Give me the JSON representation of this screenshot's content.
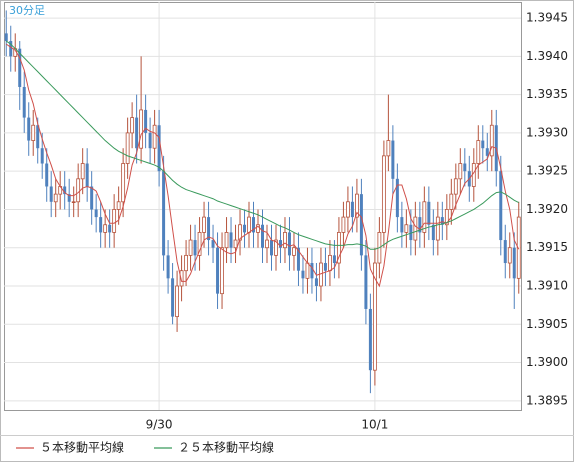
{
  "chart_data": {
    "type": "candlestick",
    "title": "30分足",
    "up_color": "#b5533c",
    "down_color": "#4f81bd",
    "grid": true,
    "ylim": [
      1.38938,
      1.39471
    ],
    "yticks": [
      1.3895,
      {
        "value": 1.39,
        "label": "1.3900"
      },
      1.3905,
      {
        "value": 1.391,
        "label": "1.3910"
      },
      1.3915,
      {
        "value": 1.392,
        "label": "1.3920"
      },
      1.3925,
      {
        "value": 1.393,
        "label": "1.3930"
      },
      1.3935,
      {
        "value": 1.394,
        "label": "1.3940"
      },
      1.3945
    ],
    "xticks": [
      {
        "value": 34,
        "label": "9/30"
      },
      {
        "value": 82,
        "label": "10/1"
      }
    ],
    "open": [
      1.3943,
      1.3942,
      1.394,
      1.3941,
      1.3936,
      1.3932,
      1.3929,
      1.3931,
      1.3928,
      1.3926,
      1.3923,
      1.3921,
      1.3922,
      1.3923,
      1.3922,
      1.3921,
      1.3921,
      1.3924,
      1.3926,
      1.3923,
      1.392,
      1.3919,
      1.3917,
      1.3918,
      1.3917,
      1.392,
      1.3921,
      1.3926,
      1.393,
      1.3932,
      1.3928,
      1.3933,
      1.393,
      1.3928,
      1.3931,
      1.3925,
      1.3914,
      1.3911,
      1.3906,
      1.391,
      1.3912,
      1.3914,
      1.3916,
      1.3914,
      1.3917,
      1.3919,
      1.3916,
      1.3915,
      1.3909,
      1.3915,
      1.3917,
      1.3915,
      1.3916,
      1.3918,
      1.3917,
      1.3919,
      1.3917,
      1.3918,
      1.3915,
      1.3916,
      1.3914,
      1.3916,
      1.3915,
      1.3917,
      1.3914,
      1.3915,
      1.3912,
      1.3911,
      1.3913,
      1.3911,
      1.391,
      1.3913,
      1.3912,
      1.3914,
      1.3913,
      1.3917,
      1.3919,
      1.3921,
      1.3919,
      1.3922,
      1.3914,
      1.3907,
      1.3899,
      1.3913,
      1.3917,
      1.3927,
      1.3929,
      1.3924,
      1.3919,
      1.3917,
      1.3918,
      1.3916,
      1.3919,
      1.3917,
      1.3921,
      1.3918,
      1.3916,
      1.3919,
      1.3918,
      1.392,
      1.3922,
      1.3924,
      1.3926,
      1.3925,
      1.3923,
      1.3926,
      1.3929,
      1.3928,
      1.3927,
      1.3931,
      1.3925,
      1.3916,
      1.3913,
      1.3915,
      1.3911
    ],
    "high": [
      1.3946,
      1.3944,
      1.3943,
      1.3942,
      1.3938,
      1.3934,
      1.3933,
      1.3932,
      1.393,
      1.3928,
      1.3925,
      1.3924,
      1.3925,
      1.3925,
      1.3924,
      1.3923,
      1.3926,
      1.3928,
      1.3928,
      1.3925,
      1.3922,
      1.3921,
      1.392,
      1.392,
      1.3922,
      1.3923,
      1.3928,
      1.3932,
      1.3934,
      1.3935,
      1.394,
      1.3935,
      1.3932,
      1.3933,
      1.3933,
      1.3927,
      1.3916,
      1.3913,
      1.3912,
      1.3914,
      1.3916,
      1.3918,
      1.3918,
      1.3919,
      1.3921,
      1.3921,
      1.3918,
      1.3917,
      1.3917,
      1.3919,
      1.3919,
      1.3918,
      1.392,
      1.392,
      1.3921,
      1.3921,
      1.392,
      1.392,
      1.3918,
      1.3918,
      1.3918,
      1.3918,
      1.3919,
      1.3919,
      1.3917,
      1.3917,
      1.3914,
      1.3915,
      1.3915,
      1.3913,
      1.3915,
      1.3915,
      1.3916,
      1.3916,
      1.3919,
      1.3921,
      1.3923,
      1.3923,
      1.3924,
      1.3924,
      1.3916,
      1.3909,
      1.3915,
      1.3919,
      1.3929,
      1.3935,
      1.3931,
      1.3926,
      1.3921,
      1.392,
      1.392,
      1.3921,
      1.3921,
      1.3923,
      1.3923,
      1.392,
      1.3921,
      1.3921,
      1.3922,
      1.3924,
      1.3926,
      1.3928,
      1.3928,
      1.3927,
      1.3928,
      1.3931,
      1.3931,
      1.393,
      1.3933,
      1.3933,
      1.3927,
      1.3918,
      1.3917,
      1.3917,
      1.3921
    ],
    "low": [
      1.394,
      1.3938,
      1.3938,
      1.3933,
      1.393,
      1.3927,
      1.3927,
      1.3926,
      1.3924,
      1.3921,
      1.3919,
      1.3919,
      1.392,
      1.392,
      1.3919,
      1.3919,
      1.3919,
      1.3922,
      1.3921,
      1.3918,
      1.3917,
      1.3915,
      1.3915,
      1.3915,
      1.3915,
      1.3918,
      1.3919,
      1.3924,
      1.3928,
      1.3926,
      1.3926,
      1.3928,
      1.3926,
      1.3926,
      1.3923,
      1.3912,
      1.3909,
      1.3905,
      1.3904,
      1.3908,
      1.391,
      1.3912,
      1.3912,
      1.3912,
      1.3915,
      1.3914,
      1.3913,
      1.3907,
      1.3907,
      1.3913,
      1.3913,
      1.3913,
      1.3914,
      1.3915,
      1.3915,
      1.3915,
      1.3915,
      1.3913,
      1.3913,
      1.3912,
      1.3912,
      1.3913,
      1.3913,
      1.3912,
      1.3912,
      1.391,
      1.3909,
      1.3909,
      1.3909,
      1.3908,
      1.3908,
      1.391,
      1.391,
      1.3911,
      1.3911,
      1.3915,
      1.3917,
      1.3917,
      1.3917,
      1.3912,
      1.3905,
      1.3896,
      1.3897,
      1.3911,
      1.3915,
      1.3925,
      1.3922,
      1.3917,
      1.3915,
      1.3915,
      1.3914,
      1.3914,
      1.3915,
      1.3915,
      1.3916,
      1.3914,
      1.3914,
      1.3916,
      1.3916,
      1.3918,
      1.392,
      1.3922,
      1.3923,
      1.3921,
      1.3921,
      1.3924,
      1.3926,
      1.3925,
      1.3925,
      1.3923,
      1.3914,
      1.3911,
      1.3911,
      1.3907,
      1.3909
    ],
    "close": [
      1.3942,
      1.394,
      1.3941,
      1.3936,
      1.3932,
      1.3929,
      1.3931,
      1.3928,
      1.3926,
      1.3923,
      1.3921,
      1.3922,
      1.3923,
      1.3922,
      1.3921,
      1.3921,
      1.3924,
      1.3926,
      1.3923,
      1.392,
      1.3919,
      1.3917,
      1.3918,
      1.3917,
      1.392,
      1.3921,
      1.3926,
      1.393,
      1.3932,
      1.3928,
      1.3933,
      1.393,
      1.3928,
      1.3931,
      1.3925,
      1.3914,
      1.3911,
      1.3906,
      1.391,
      1.3912,
      1.3914,
      1.3916,
      1.3914,
      1.3917,
      1.3919,
      1.3916,
      1.3915,
      1.3909,
      1.3915,
      1.3917,
      1.3915,
      1.3916,
      1.3918,
      1.3917,
      1.3919,
      1.3917,
      1.3918,
      1.3915,
      1.3916,
      1.3914,
      1.3916,
      1.3915,
      1.3917,
      1.3914,
      1.3915,
      1.3912,
      1.3911,
      1.3913,
      1.3911,
      1.391,
      1.3913,
      1.3912,
      1.3914,
      1.3913,
      1.3917,
      1.3919,
      1.3921,
      1.3919,
      1.3922,
      1.3914,
      1.3907,
      1.3899,
      1.3913,
      1.3917,
      1.3927,
      1.3929,
      1.3924,
      1.3919,
      1.3917,
      1.3918,
      1.3916,
      1.3919,
      1.3917,
      1.3921,
      1.3918,
      1.3916,
      1.3919,
      1.3918,
      1.392,
      1.3922,
      1.3924,
      1.3926,
      1.3925,
      1.3923,
      1.3926,
      1.3929,
      1.3928,
      1.3927,
      1.3931,
      1.3925,
      1.3916,
      1.3913,
      1.3915,
      1.3911,
      1.3919
    ],
    "series": [
      {
        "name": "５本移動平均線",
        "color": "#d0504a",
        "values": [
          1.39416,
          1.39412,
          1.39408,
          1.39398,
          1.39382,
          1.39356,
          1.39338,
          1.39312,
          1.39292,
          1.39274,
          1.39258,
          1.3924,
          1.3923,
          1.39222,
          1.39218,
          1.39218,
          1.39222,
          1.39228,
          1.3923,
          1.39228,
          1.39224,
          1.3921,
          1.39194,
          1.39182,
          1.39182,
          1.39186,
          1.39204,
          1.39228,
          1.39258,
          1.39274,
          1.39298,
          1.39306,
          1.39302,
          1.393,
          1.39294,
          1.39256,
          1.39218,
          1.39174,
          1.39132,
          1.39106,
          1.39106,
          1.39116,
          1.39132,
          1.39146,
          1.3916,
          1.39164,
          1.39162,
          1.39152,
          1.39148,
          1.39144,
          1.39142,
          1.39144,
          1.39162,
          1.39166,
          1.3917,
          1.39174,
          1.39178,
          1.39172,
          1.3917,
          1.3916,
          1.39158,
          1.39152,
          1.39156,
          1.39152,
          1.39154,
          1.39146,
          1.39138,
          1.3913,
          1.39124,
          1.39114,
          1.39116,
          1.39118,
          1.3912,
          1.39124,
          1.39138,
          1.3915,
          1.39168,
          1.39178,
          1.39196,
          1.3919,
          1.39166,
          1.39122,
          1.3911,
          1.391,
          1.39126,
          1.3917,
          1.3922,
          1.39232,
          1.39232,
          1.39214,
          1.39188,
          1.39178,
          1.39174,
          1.39182,
          1.39182,
          1.39182,
          1.39182,
          1.39184,
          1.39182,
          1.3919,
          1.39206,
          1.3922,
          1.39234,
          1.3924,
          1.39248,
          1.39258,
          1.39262,
          1.39266,
          1.39282,
          1.3928,
          1.39254,
          1.39224,
          1.392,
          1.3916,
          1.39148
        ]
      },
      {
        "name": "２５本移動平均線",
        "color": "#3a9a5c",
        "values": [
          1.3942,
          1.39416,
          1.3941,
          1.39404,
          1.39398,
          1.39392,
          1.39386,
          1.3938,
          1.39374,
          1.39368,
          1.39362,
          1.39356,
          1.3935,
          1.39344,
          1.39338,
          1.39332,
          1.39326,
          1.3932,
          1.39314,
          1.39308,
          1.39302,
          1.39296,
          1.3929,
          1.39285,
          1.3928,
          1.39276,
          1.39273,
          1.3927,
          1.39268,
          1.39266,
          1.39264,
          1.39262,
          1.3926,
          1.39258,
          1.39255,
          1.3925,
          1.39244,
          1.39238,
          1.39233,
          1.39229,
          1.39226,
          1.39224,
          1.39222,
          1.3922,
          1.39218,
          1.39216,
          1.39214,
          1.39211,
          1.39209,
          1.39207,
          1.39205,
          1.39203,
          1.39201,
          1.39199,
          1.39197,
          1.39195,
          1.39193,
          1.3919,
          1.39187,
          1.39184,
          1.39181,
          1.39178,
          1.39176,
          1.39173,
          1.3917,
          1.39167,
          1.39165,
          1.39163,
          1.39161,
          1.39159,
          1.39157,
          1.39155,
          1.39154,
          1.39153,
          1.39153,
          1.39153,
          1.39154,
          1.39154,
          1.39155,
          1.39154,
          1.39152,
          1.39148,
          1.39148,
          1.3915,
          1.39154,
          1.39158,
          1.39161,
          1.39163,
          1.39165,
          1.39167,
          1.39169,
          1.39171,
          1.39173,
          1.39175,
          1.39177,
          1.39178,
          1.3918,
          1.39181,
          1.39183,
          1.39185,
          1.39188,
          1.39191,
          1.39194,
          1.39197,
          1.392,
          1.39204,
          1.39208,
          1.39213,
          1.39218,
          1.39222,
          1.39223,
          1.3922,
          1.39216,
          1.39212,
          1.39209
        ]
      }
    ]
  }
}
